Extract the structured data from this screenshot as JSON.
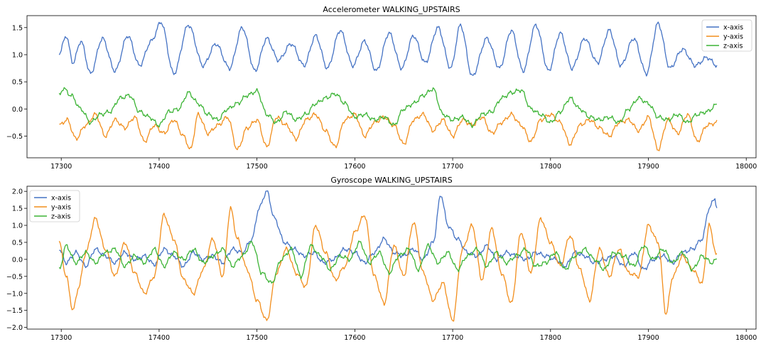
{
  "chart_data": [
    {
      "type": "line",
      "title": "Accelerometer WALKING_UPSTAIRS",
      "xlim": [
        17265,
        18010
      ],
      "ylim": [
        -0.9,
        1.72
      ],
      "xticks": [
        17300,
        17400,
        17500,
        17600,
        17700,
        17800,
        17900,
        18000
      ],
      "yticks": [
        -0.5,
        0.0,
        0.5,
        1.0,
        1.5
      ],
      "ytick_labels": [
        "−0.5",
        "0.0",
        "0.5",
        "1.0",
        "1.5"
      ],
      "legend": "top-right",
      "grid": false,
      "x_range": [
        17298,
        17970
      ],
      "series": [
        {
          "name": "x-axis",
          "color": "#4472c4",
          "x": [
            17298,
            17305,
            17312,
            17320,
            17330,
            17342,
            17355,
            17368,
            17380,
            17392,
            17402,
            17415,
            17430,
            17445,
            17458,
            17472,
            17485,
            17498,
            17510,
            17522,
            17535,
            17548,
            17560,
            17572,
            17585,
            17598,
            17610,
            17622,
            17635,
            17648,
            17660,
            17672,
            17685,
            17698,
            17708,
            17720,
            17735,
            17748,
            17760,
            17772,
            17785,
            17798,
            17810,
            17822,
            17835,
            17848,
            17860,
            17872,
            17885,
            17898,
            17910,
            17922,
            17935,
            17948,
            17960,
            17970
          ],
          "values": [
            1.02,
            1.35,
            0.85,
            1.25,
            0.65,
            1.3,
            0.7,
            1.35,
            0.8,
            1.25,
            1.6,
            0.65,
            1.55,
            0.8,
            1.2,
            0.75,
            1.5,
            0.7,
            1.3,
            0.9,
            1.2,
            0.8,
            1.35,
            0.75,
            1.45,
            0.8,
            1.25,
            0.7,
            1.4,
            0.75,
            1.35,
            0.85,
            1.5,
            0.75,
            1.55,
            0.6,
            1.3,
            0.75,
            1.45,
            0.7,
            1.55,
            0.7,
            1.4,
            0.75,
            1.3,
            0.85,
            1.45,
            0.8,
            1.3,
            0.65,
            1.58,
            0.75,
            1.1,
            0.8,
            0.95,
            0.8
          ]
        },
        {
          "name": "y-axis",
          "color": "#f28e1c",
          "x": [
            17298,
            17306,
            17315,
            17325,
            17335,
            17345,
            17355,
            17365,
            17375,
            17385,
            17395,
            17405,
            17415,
            17425,
            17432,
            17440,
            17450,
            17460,
            17470,
            17480,
            17490,
            17500,
            17510,
            17520,
            17530,
            17540,
            17550,
            17560,
            17570,
            17580,
            17590,
            17600,
            17610,
            17620,
            17630,
            17640,
            17650,
            17660,
            17670,
            17680,
            17690,
            17700,
            17710,
            17720,
            17730,
            17740,
            17750,
            17760,
            17770,
            17780,
            17790,
            17800,
            17810,
            17820,
            17830,
            17840,
            17850,
            17860,
            17870,
            17880,
            17890,
            17900,
            17910,
            17920,
            17930,
            17940,
            17950,
            17960,
            17970
          ],
          "values": [
            -0.3,
            -0.2,
            -0.55,
            -0.3,
            -0.1,
            -0.5,
            -0.2,
            -0.35,
            -0.15,
            -0.6,
            -0.3,
            -0.45,
            -0.2,
            -0.5,
            -0.75,
            -0.1,
            -0.45,
            -0.3,
            -0.15,
            -0.75,
            -0.35,
            -0.2,
            -0.7,
            -0.15,
            -0.3,
            -0.55,
            -0.2,
            -0.1,
            -0.4,
            -0.7,
            -0.2,
            -0.1,
            -0.5,
            -0.25,
            -0.15,
            -0.3,
            -0.65,
            -0.2,
            -0.1,
            -0.4,
            -0.2,
            -0.5,
            -0.2,
            -0.3,
            -0.15,
            -0.45,
            -0.25,
            -0.1,
            -0.3,
            -0.6,
            -0.2,
            -0.1,
            -0.25,
            -0.65,
            -0.3,
            -0.2,
            -0.35,
            -0.5,
            -0.25,
            -0.2,
            -0.4,
            -0.15,
            -0.75,
            -0.2,
            -0.45,
            -0.1,
            -0.6,
            -0.3,
            -0.25
          ]
        },
        {
          "name": "z-axis",
          "color": "#3cb435",
          "x": [
            17298,
            17302,
            17310,
            17320,
            17330,
            17340,
            17350,
            17360,
            17370,
            17380,
            17390,
            17400,
            17410,
            17420,
            17430,
            17440,
            17450,
            17460,
            17470,
            17480,
            17490,
            17500,
            17510,
            17520,
            17530,
            17540,
            17550,
            17560,
            17570,
            17580,
            17590,
            17600,
            17610,
            17620,
            17630,
            17640,
            17650,
            17660,
            17670,
            17680,
            17690,
            17700,
            17710,
            17720,
            17730,
            17740,
            17750,
            17760,
            17770,
            17780,
            17790,
            17800,
            17810,
            17820,
            17830,
            17840,
            17850,
            17860,
            17870,
            17880,
            17890,
            17900,
            17910,
            17920,
            17930,
            17940,
            17950,
            17960,
            17970
          ],
          "values": [
            0.25,
            0.38,
            0.25,
            0.0,
            -0.25,
            -0.1,
            -0.05,
            0.2,
            0.25,
            -0.05,
            -0.15,
            -0.3,
            -0.05,
            0.0,
            0.3,
            0.1,
            -0.1,
            -0.2,
            0.0,
            0.1,
            0.25,
            0.33,
            -0.1,
            -0.25,
            -0.05,
            -0.2,
            -0.1,
            0.1,
            0.2,
            0.28,
            0.1,
            -0.15,
            -0.1,
            -0.2,
            -0.15,
            -0.3,
            0.0,
            0.1,
            0.25,
            0.37,
            -0.1,
            -0.2,
            -0.15,
            -0.3,
            -0.1,
            -0.05,
            0.2,
            0.3,
            0.35,
            0.0,
            -0.1,
            -0.25,
            -0.05,
            0.2,
            0.0,
            -0.15,
            -0.2,
            -0.15,
            -0.25,
            0.0,
            0.2,
            0.1,
            -0.15,
            -0.2,
            -0.1,
            -0.25,
            -0.1,
            -0.05,
            0.08
          ]
        }
      ]
    },
    {
      "type": "line",
      "title": "Gyroscope WALKING_UPSTAIRS",
      "xlim": [
        17265,
        18010
      ],
      "ylim": [
        -2.05,
        2.15
      ],
      "xticks": [
        17300,
        17400,
        17500,
        17600,
        17700,
        17800,
        17900,
        18000
      ],
      "yticks": [
        -2.0,
        -1.5,
        -1.0,
        -0.5,
        0.0,
        0.5,
        1.0,
        1.5,
        2.0
      ],
      "ytick_labels": [
        "−2.0",
        "−1.5",
        "−1.0",
        "−0.5",
        "0.0",
        "0.5",
        "1.0",
        "1.5",
        "2.0"
      ],
      "legend": "top-left",
      "grid": false,
      "x_range": [
        17298,
        17970
      ],
      "series": [
        {
          "name": "x-axis",
          "color": "#4472c4",
          "x": [
            17298,
            17305,
            17315,
            17325,
            17335,
            17345,
            17355,
            17365,
            17375,
            17385,
            17395,
            17405,
            17415,
            17425,
            17435,
            17445,
            17455,
            17465,
            17475,
            17485,
            17495,
            17502,
            17510,
            17518,
            17528,
            17538,
            17548,
            17558,
            17568,
            17578,
            17590,
            17600,
            17610,
            17620,
            17630,
            17640,
            17650,
            17660,
            17670,
            17680,
            17688,
            17695,
            17705,
            17715,
            17725,
            17735,
            17745,
            17755,
            17765,
            17775,
            17785,
            17795,
            17805,
            17815,
            17825,
            17835,
            17845,
            17855,
            17865,
            17875,
            17885,
            17895,
            17905,
            17915,
            17925,
            17935,
            17945,
            17955,
            17962,
            17968,
            17970
          ],
          "values": [
            0.3,
            -0.1,
            0.2,
            -0.2,
            0.3,
            0.1,
            -0.1,
            0.2,
            0.0,
            0.1,
            -0.15,
            0.3,
            0.1,
            -0.2,
            0.2,
            0.0,
            0.1,
            -0.1,
            0.3,
            0.2,
            0.6,
            1.5,
            2.0,
            1.2,
            0.5,
            0.3,
            0.1,
            0.2,
            -0.1,
            0.0,
            0.3,
            0.2,
            -0.1,
            0.2,
            0.6,
            0.2,
            0.1,
            0.3,
            0.0,
            0.5,
            1.9,
            1.0,
            0.6,
            0.2,
            0.1,
            0.4,
            0.0,
            0.2,
            0.1,
            0.0,
            0.2,
            0.1,
            0.0,
            -0.2,
            0.2,
            0.1,
            -0.1,
            0.0,
            0.1,
            -0.2,
            0.2,
            -0.3,
            0.0,
            0.1,
            -0.1,
            0.2,
            0.3,
            0.6,
            1.5,
            1.8,
            1.5
          ]
        },
        {
          "name": "y-axis",
          "color": "#f28e1c",
          "x": [
            17298,
            17305,
            17312,
            17318,
            17325,
            17335,
            17345,
            17355,
            17365,
            17375,
            17385,
            17395,
            17405,
            17415,
            17425,
            17435,
            17445,
            17455,
            17465,
            17473,
            17480,
            17490,
            17500,
            17510,
            17520,
            17530,
            17540,
            17550,
            17560,
            17570,
            17580,
            17590,
            17600,
            17610,
            17620,
            17630,
            17640,
            17650,
            17660,
            17670,
            17680,
            17690,
            17700,
            17710,
            17720,
            17730,
            17740,
            17750,
            17760,
            17770,
            17780,
            17790,
            17800,
            17810,
            17820,
            17830,
            17840,
            17850,
            17860,
            17870,
            17880,
            17890,
            17900,
            17910,
            17918,
            17925,
            17935,
            17945,
            17955,
            17962,
            17970
          ],
          "values": [
            0.5,
            -0.5,
            -1.5,
            -0.8,
            0.2,
            1.2,
            0.3,
            -0.5,
            0.5,
            -0.4,
            -1.0,
            -0.5,
            1.3,
            0.6,
            -0.6,
            -1.0,
            -0.3,
            0.6,
            -0.5,
            1.5,
            0.6,
            -0.3,
            -1.2,
            -1.8,
            -0.4,
            0.3,
            -0.4,
            -0.8,
            1.0,
            0.2,
            -0.6,
            -0.2,
            0.8,
            1.3,
            -0.5,
            -1.3,
            0.4,
            -0.5,
            1.1,
            -0.4,
            -1.2,
            -0.7,
            -1.8,
            0.3,
            1.0,
            -0.6,
            0.9,
            -0.4,
            -1.3,
            0.8,
            -0.4,
            1.2,
            0.5,
            -0.2,
            0.7,
            -0.3,
            -1.2,
            0.3,
            -0.5,
            0.3,
            -0.4,
            -0.5,
            1.0,
            0.5,
            -1.6,
            -0.5,
            0.1,
            -0.3,
            -0.7,
            1.0,
            0.1
          ]
        },
        {
          "name": "z-axis",
          "color": "#3cb435",
          "x": [
            17298,
            17305,
            17315,
            17325,
            17335,
            17345,
            17355,
            17365,
            17375,
            17385,
            17395,
            17405,
            17415,
            17425,
            17435,
            17445,
            17455,
            17465,
            17475,
            17485,
            17495,
            17505,
            17515,
            17525,
            17535,
            17545,
            17555,
            17565,
            17575,
            17585,
            17595,
            17605,
            17615,
            17625,
            17635,
            17645,
            17655,
            17665,
            17675,
            17685,
            17695,
            17705,
            17715,
            17725,
            17735,
            17745,
            17755,
            17765,
            17775,
            17785,
            17795,
            17805,
            17815,
            17825,
            17835,
            17845,
            17855,
            17865,
            17875,
            17885,
            17895,
            17905,
            17915,
            17925,
            17935,
            17945,
            17955,
            17965,
            17970
          ],
          "values": [
            -0.3,
            0.4,
            -0.1,
            0.2,
            -0.1,
            0.2,
            0.3,
            -0.2,
            0.1,
            -0.1,
            0.3,
            -0.2,
            0.2,
            0.0,
            0.3,
            -0.1,
            0.1,
            0.3,
            -0.2,
            0.1,
            0.5,
            -0.4,
            -0.7,
            0.0,
            0.3,
            -0.5,
            0.4,
            0.1,
            -0.3,
            0.1,
            0.0,
            0.5,
            -0.1,
            0.2,
            -0.4,
            0.1,
            0.3,
            -0.3,
            0.4,
            -0.1,
            0.2,
            -0.3,
            0.1,
            0.3,
            -0.2,
            0.2,
            -0.1,
            0.1,
            0.3,
            -0.2,
            -0.1,
            0.2,
            -0.3,
            0.1,
            0.3,
            0.0,
            -0.3,
            0.2,
            0.1,
            -0.2,
            0.4,
            0.0,
            0.3,
            -0.1,
            0.2,
            -0.3,
            0.1,
            -0.1,
            0.0
          ]
        }
      ]
    }
  ]
}
